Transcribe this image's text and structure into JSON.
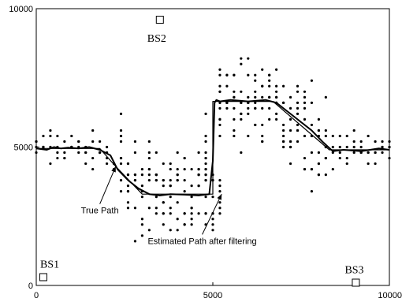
{
  "chart_data": {
    "type": "scatter",
    "xlim": [
      0,
      10000
    ],
    "ylim": [
      0,
      10000
    ],
    "x_ticks": [
      {
        "value": 0,
        "label": "0"
      },
      {
        "value": 5000,
        "label": "5000"
      },
      {
        "value": 10000,
        "label": "10000"
      }
    ],
    "y_ticks": [
      {
        "value": 0,
        "label": "0"
      },
      {
        "value": 5000,
        "label": "5000"
      },
      {
        "value": 10000,
        "label": "10000"
      }
    ],
    "grid": false,
    "base_stations": [
      {
        "label": "BS1",
        "x": 200,
        "y": 300
      },
      {
        "label": "BS2",
        "x": 3500,
        "y": 9600
      },
      {
        "label": "BS3",
        "x": 9050,
        "y": 100
      }
    ],
    "annotations": [
      {
        "text": "True Path",
        "x": 1800,
        "y": 2600,
        "target_x": 2250,
        "target_y": 4300
      },
      {
        "text": "Estimated Path after filtering",
        "x": 4700,
        "y": 1500,
        "target_x": 5250,
        "target_y": 3300
      }
    ],
    "series": [
      {
        "role": "true_path",
        "x": [
          0,
          1800,
          2250,
          3000,
          5000,
          5000,
          6700,
          8300,
          10000
        ],
        "y": [
          4950,
          4950,
          4300,
          3300,
          3300,
          6650,
          6650,
          4900,
          4900
        ]
      },
      {
        "role": "estimated_path",
        "x": [
          0,
          300,
          500,
          700,
          900,
          1200,
          1500,
          1800,
          2100,
          2300,
          2600,
          2900,
          3200,
          3500,
          3800,
          4200,
          4600,
          4900,
          5000,
          5050,
          5100,
          5200,
          5500,
          6000,
          6500,
          6800,
          7100,
          7400,
          7800,
          8100,
          8400,
          8700,
          9200,
          9700,
          10000
        ],
        "y": [
          4950,
          4900,
          5000,
          4950,
          4980,
          4950,
          5000,
          4900,
          4700,
          4200,
          3800,
          3500,
          3300,
          3250,
          3300,
          3280,
          3250,
          3300,
          4500,
          6600,
          6700,
          6650,
          6700,
          6650,
          6700,
          6600,
          6300,
          6000,
          5600,
          5200,
          4850,
          4900,
          4850,
          4950,
          4900
        ]
      },
      {
        "role": "measurements",
        "seed": 7
      }
    ]
  }
}
